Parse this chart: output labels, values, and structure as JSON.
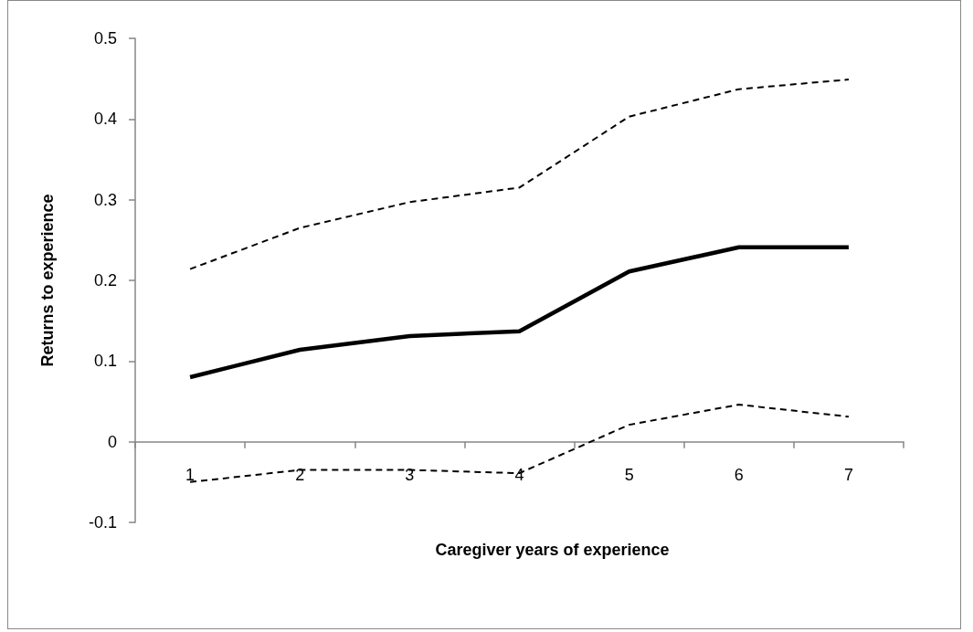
{
  "chart_data": {
    "type": "line",
    "xlabel": "Caregiver years of experience",
    "ylabel": "Returns to experience",
    "categories": [
      "1",
      "2",
      "3",
      "4",
      "5",
      "6",
      "7"
    ],
    "ylim": [
      -0.1,
      0.5
    ],
    "yticks": [
      -0.1,
      0,
      0.1,
      0.2,
      0.3,
      0.4,
      0.5
    ],
    "marker": "none",
    "series": [
      {
        "color": "#000000",
        "line_style": "solid",
        "values": [
          0.08,
          0.114,
          0.131,
          0.137,
          0.211,
          0.241,
          0.241
        ]
      },
      {
        "color": "#000000",
        "line_style": "dashed",
        "values": [
          0.214,
          0.265,
          0.297,
          0.315,
          0.403,
          0.437,
          0.449
        ]
      },
      {
        "color": "#000000",
        "line_style": "dashed",
        "values": [
          -0.05,
          -0.035,
          -0.035,
          -0.039,
          0.021,
          0.046,
          0.031
        ]
      }
    ]
  }
}
